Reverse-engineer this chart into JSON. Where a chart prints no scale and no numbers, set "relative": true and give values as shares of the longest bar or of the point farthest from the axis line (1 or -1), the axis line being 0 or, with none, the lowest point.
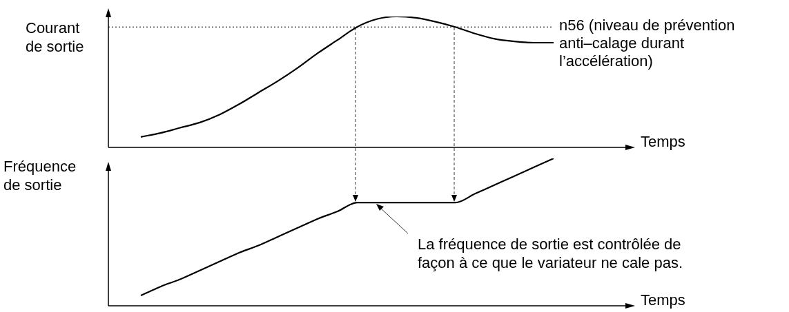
{
  "chart_data": [
    {
      "type": "line",
      "relative": true,
      "ylabel": "Courant de sortie",
      "xlabel": "Temps",
      "grid": false,
      "legend": false,
      "marker": "none",
      "categories": [
        null,
        null,
        null,
        null,
        null,
        null,
        null,
        null,
        null,
        null,
        null,
        null,
        null,
        null,
        null,
        null,
        null,
        null,
        null,
        null,
        null,
        null
      ],
      "series": [
        {
          "color": "#000000",
          "values": [
            0.08,
            0.11,
            0.15,
            0.19,
            0.25,
            0.33,
            0.42,
            0.51,
            0.61,
            0.72,
            0.82,
            0.92,
            0.98,
            1,
            0.99,
            0.96,
            0.92,
            0.87,
            0.83,
            0.81,
            0.8,
            0.8
          ]
        }
      ],
      "ref_lines": [
        {
          "axis": "y",
          "value": 0.92,
          "label": "n56 (niveau de prévention anti–calage durant l’accélération)",
          "color": "#000000",
          "line_style": "dotted"
        }
      ]
    },
    {
      "type": "line",
      "relative": true,
      "ylabel": "Fréquence de sortie",
      "xlabel": "Temps",
      "grid": false,
      "legend": false,
      "marker": "none",
      "categories": [
        null,
        null,
        null,
        null,
        null,
        null,
        null,
        null,
        null,
        null,
        null,
        null,
        null,
        null,
        null,
        null,
        null,
        null,
        null,
        null,
        null,
        null
      ],
      "series": [
        {
          "color": "#000000",
          "values": [
            0.07,
            0.13,
            0.18,
            0.24,
            0.3,
            0.36,
            0.41,
            0.47,
            0.53,
            0.59,
            0.64,
            0.7,
            0.7,
            0.7,
            0.7,
            0.7,
            0.7,
            0.76,
            0.82,
            0.88,
            0.94,
            1
          ]
        }
      ],
      "annotations": [
        "La fréquence de sortie est contrôlée de façon à ce que le variateur ne cale pas."
      ]
    }
  ]
}
